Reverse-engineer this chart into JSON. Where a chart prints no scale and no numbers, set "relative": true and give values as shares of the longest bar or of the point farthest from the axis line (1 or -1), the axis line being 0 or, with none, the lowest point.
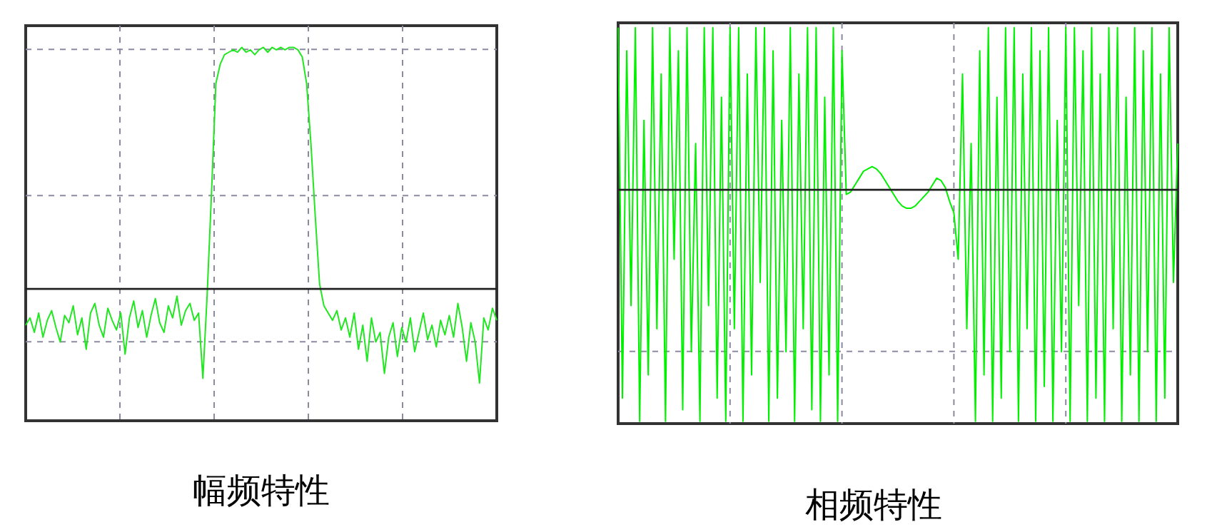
{
  "chart_data": [
    {
      "type": "line",
      "relative": true,
      "xlabel": "幅频特性",
      "grid": true,
      "color": "#22e622",
      "categories": [
        null,
        null,
        null,
        null,
        null,
        null,
        null,
        null,
        null,
        null,
        null,
        null,
        null,
        null,
        null,
        null,
        null,
        null,
        null,
        null,
        null,
        null,
        null,
        null,
        null,
        null,
        null,
        null,
        null,
        null,
        null,
        null,
        null,
        null,
        null,
        null,
        null,
        null,
        null,
        null,
        null,
        null,
        null,
        null,
        null,
        null,
        null,
        null,
        null,
        null,
        null,
        null,
        null,
        null,
        null,
        null,
        null,
        null,
        null,
        null,
        null,
        null,
        null,
        null,
        null,
        null,
        null,
        null,
        null,
        null,
        null,
        null,
        null,
        null,
        null,
        null,
        null,
        null,
        null,
        null,
        null,
        null,
        null,
        null,
        null,
        null,
        null,
        null,
        null,
        null,
        null,
        null,
        null,
        null,
        null,
        null,
        null,
        null,
        null,
        null,
        null,
        null,
        null,
        null,
        null,
        null,
        null,
        null,
        null,
        null
      ],
      "values": [
        -0.15,
        -0.12,
        -0.18,
        -0.1,
        -0.2,
        -0.13,
        -0.09,
        -0.16,
        -0.22,
        -0.11,
        -0.14,
        -0.07,
        -0.19,
        -0.12,
        -0.25,
        -0.1,
        -0.06,
        -0.15,
        -0.2,
        -0.08,
        -0.13,
        -0.17,
        -0.1,
        -0.27,
        -0.12,
        -0.05,
        -0.16,
        -0.09,
        -0.2,
        -0.11,
        -0.04,
        -0.14,
        -0.18,
        -0.07,
        -0.12,
        -0.03,
        -0.15,
        -0.09,
        -0.06,
        -0.13,
        -0.1,
        -0.37,
        -0.02,
        0.4,
        0.85,
        0.93,
        0.97,
        0.98,
        0.99,
        0.98,
        1,
        0.98,
        0.99,
        0.97,
        0.99,
        1,
        0.98,
        1,
        0.99,
        1,
        0.99,
        1,
        1,
        0.99,
        0.96,
        0.85,
        0.6,
        0.3,
        0.02,
        -0.07,
        -0.1,
        -0.13,
        -0.09,
        -0.17,
        -0.12,
        -0.2,
        -0.1,
        -0.25,
        -0.15,
        -0.3,
        -0.12,
        -0.22,
        -0.18,
        -0.35,
        -0.2,
        -0.14,
        -0.28,
        -0.16,
        -0.22,
        -0.12,
        -0.26,
        -0.18,
        -0.1,
        -0.21,
        -0.15,
        -0.24,
        -0.13,
        -0.19,
        -0.11,
        -0.2,
        -0.06,
        -0.16,
        -0.3,
        -0.14,
        -0.22,
        -0.39,
        -0.12,
        -0.17,
        -0.08,
        -0.13
      ]
    },
    {
      "type": "line",
      "relative": true,
      "xlabel": "相频特性",
      "grid": true,
      "color": "#00f000",
      "categories": [
        null,
        null,
        null,
        null,
        null,
        null,
        null,
        null,
        null,
        null,
        null,
        null,
        null,
        null,
        null,
        null,
        null,
        null,
        null,
        null,
        null,
        null,
        null,
        null,
        null,
        null,
        null,
        null,
        null,
        null,
        null,
        null,
        null,
        null,
        null,
        null,
        null,
        null,
        null,
        null,
        null,
        null,
        null,
        null,
        null,
        null,
        null,
        null,
        null,
        null,
        null,
        null,
        null,
        null,
        null,
        null,
        null,
        null,
        null,
        null,
        null,
        null,
        null,
        null,
        null,
        null,
        null,
        null,
        null,
        null,
        null,
        null,
        null,
        null,
        null,
        null,
        null,
        null,
        null,
        null,
        null,
        null,
        null,
        null,
        null,
        null,
        null,
        null,
        null,
        null,
        null,
        null,
        null,
        null,
        null,
        null,
        null,
        null,
        null,
        null,
        null,
        null,
        null,
        null,
        null,
        null,
        null,
        null,
        null,
        null,
        null,
        null,
        null,
        null,
        null,
        null,
        null,
        null,
        null,
        null,
        null,
        null,
        null,
        null,
        null,
        null,
        null,
        null,
        null,
        null,
        null
      ],
      "values": [
        0.7,
        -0.9,
        0.6,
        -0.5,
        0.7,
        -1,
        0.3,
        -0.8,
        0.7,
        -0.6,
        0.5,
        -1,
        0.7,
        -0.3,
        0.6,
        -0.95,
        0.7,
        -0.7,
        0.2,
        -1,
        0.7,
        -0.5,
        0.7,
        -0.9,
        0.4,
        -1,
        0.7,
        -0.6,
        0.7,
        -1,
        0.5,
        -0.8,
        0.7,
        -0.4,
        0.7,
        -1,
        0.6,
        -0.9,
        0.3,
        -0.7,
        0.7,
        -1,
        0.5,
        -0.6,
        0.7,
        -0.95,
        0.7,
        -1,
        0.4,
        -0.8,
        0.7,
        -1,
        0.6,
        -0.02,
        -0.01,
        0.02,
        0.05,
        0.08,
        0.09,
        0.1,
        0.09,
        0.07,
        0.04,
        0.01,
        -0.02,
        -0.05,
        -0.07,
        -0.08,
        -0.08,
        -0.07,
        -0.05,
        -0.03,
        -0.01,
        0.02,
        0.05,
        0.04,
        0.01,
        -0.05,
        -0.1,
        -0.3,
        0.5,
        -0.6,
        0.2,
        -1,
        0.6,
        -0.8,
        0.7,
        -1,
        0.4,
        -0.9,
        0.7,
        -0.7,
        0.7,
        -1,
        0.5,
        -0.6,
        0.7,
        -1,
        0.6,
        -0.85,
        0.7,
        -1,
        0.3,
        -0.7,
        0.7,
        -1,
        0.7,
        -0.5,
        0.6,
        -1,
        0.7,
        -0.9,
        0.5,
        -1,
        0.7,
        -0.6,
        0.7,
        -1,
        0.4,
        -0.8,
        0.7,
        -1,
        0.6,
        -0.7,
        0.7,
        -1,
        0.5,
        -0.9,
        0.7,
        -0.4,
        0.2
      ]
    }
  ]
}
